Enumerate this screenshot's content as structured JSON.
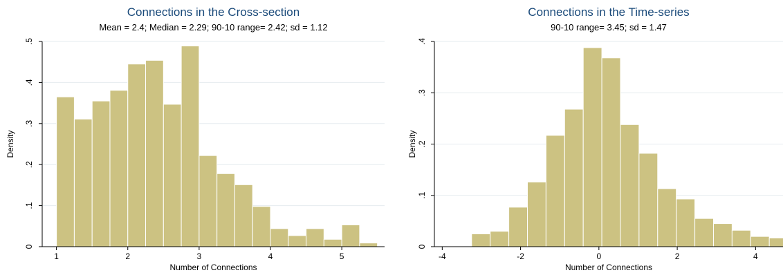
{
  "chart_data": [
    {
      "type": "bar",
      "title": "Connections in the Cross-section",
      "subtitle": "Mean = 2.4;   Median = 2.29;   90-10 range= 2.42;   sd =  1.12",
      "xlabel": "Number of Connections",
      "ylabel": "Density",
      "xlim": [
        0.8,
        5.6
      ],
      "ylim": [
        0,
        0.5
      ],
      "xticks": [
        1,
        2,
        3,
        4,
        5
      ],
      "yticks": [
        0,
        0.1,
        0.2,
        0.3,
        0.4,
        0.5
      ],
      "ytick_labels": [
        "0",
        ".1",
        ".2",
        ".3",
        ".4",
        ".5"
      ],
      "bin_start": 1.0,
      "bin_width": 0.25,
      "values": [
        0.365,
        0.311,
        0.355,
        0.381,
        0.445,
        0.454,
        0.347,
        0.489,
        0.222,
        0.178,
        0.151,
        0.098,
        0.044,
        0.027,
        0.044,
        0.018,
        0.053,
        0.009
      ],
      "bar_color": "#ccc282",
      "grid": true
    },
    {
      "type": "bar",
      "title": "Connections in the Time-series",
      "subtitle": "90-10 range= 3.45;   sd =  1.47",
      "xlabel": "Number of Connections",
      "ylabel": "Density",
      "xlim": [
        -4.2,
        4.7
      ],
      "ylim": [
        0,
        0.4
      ],
      "xticks": [
        -4,
        -2,
        0,
        2,
        4
      ],
      "yticks": [
        0,
        0.1,
        0.2,
        0.3,
        0.4
      ],
      "ytick_labels": [
        "0",
        ".1",
        ".2",
        ".3",
        ".4"
      ],
      "bin_start": -3.25,
      "bin_width": 0.475,
      "values": [
        0.025,
        0.03,
        0.077,
        0.126,
        0.217,
        0.268,
        0.388,
        0.368,
        0.238,
        0.182,
        0.113,
        0.093,
        0.055,
        0.045,
        0.032,
        0.02,
        0.017,
        0.007
      ],
      "bar_color": "#ccc282",
      "grid": true
    }
  ]
}
